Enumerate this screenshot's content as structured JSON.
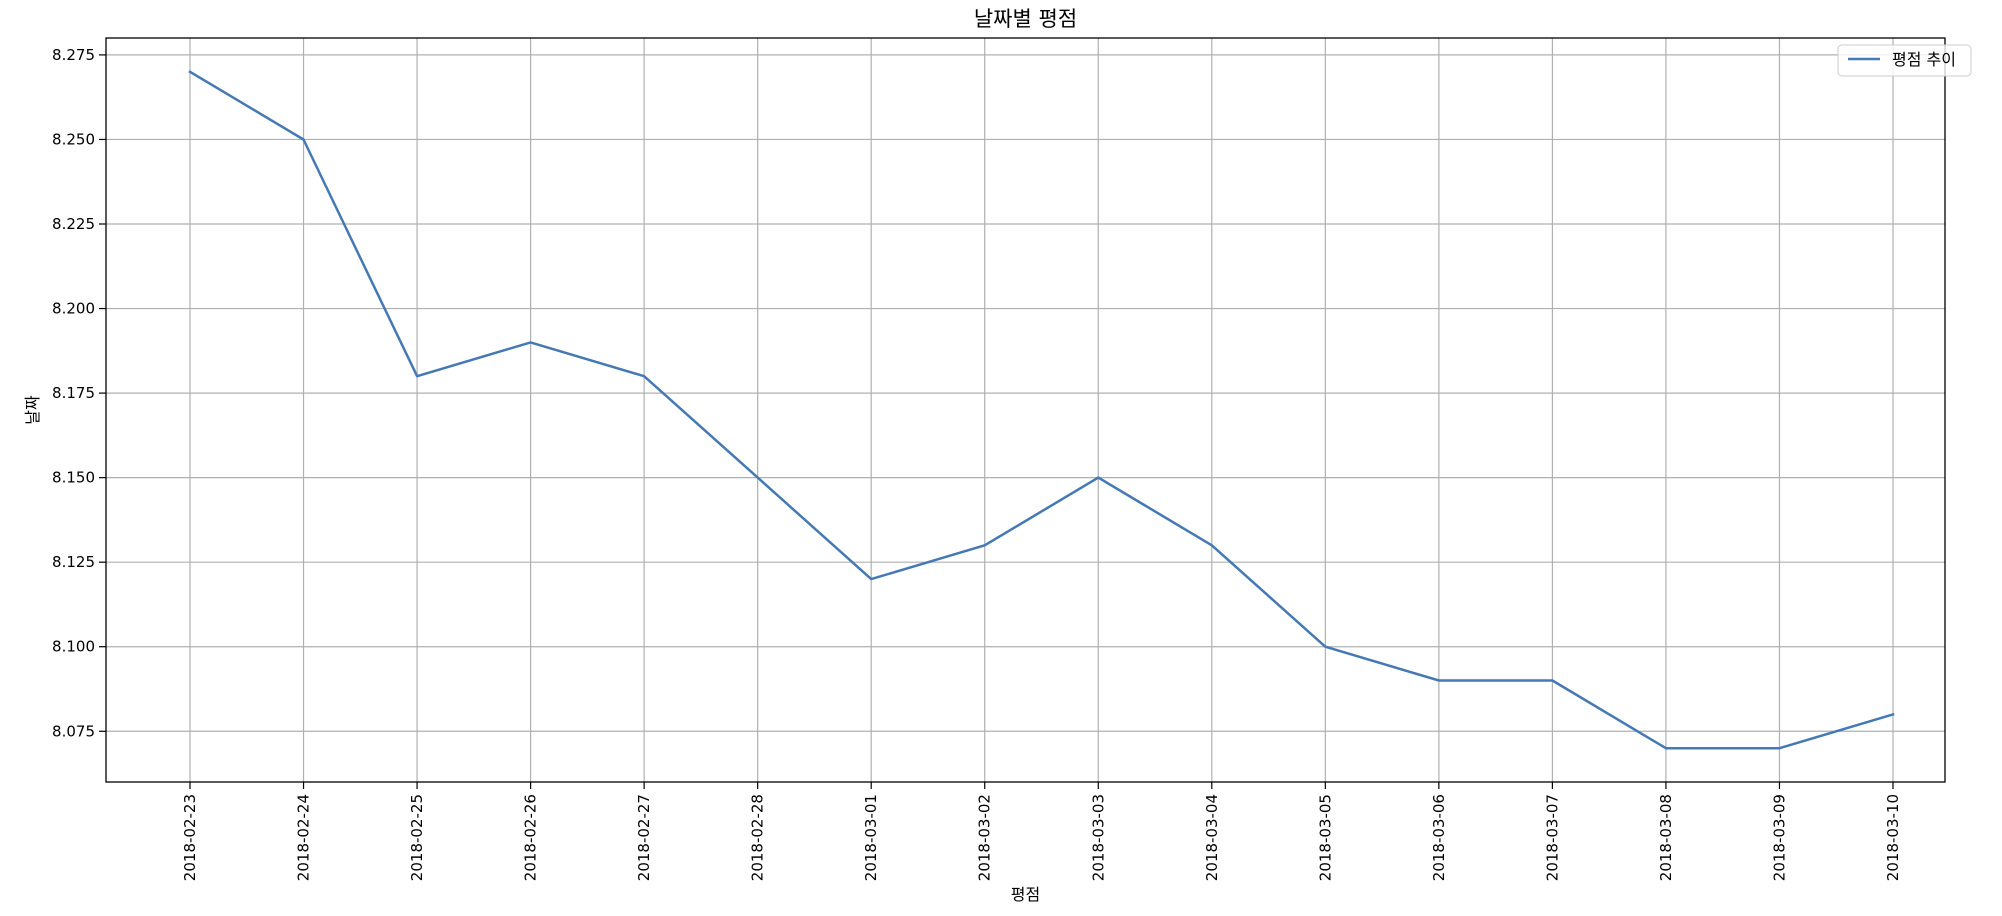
{
  "chart_data": {
    "type": "line",
    "title": "날짜별 평점",
    "xlabel": "평점",
    "ylabel": "날짜",
    "x": [
      "2018-02-23",
      "2018-02-24",
      "2018-02-25",
      "2018-02-26",
      "2018-02-27",
      "2018-02-28",
      "2018-03-01",
      "2018-03-02",
      "2018-03-03",
      "2018-03-04",
      "2018-03-05",
      "2018-03-06",
      "2018-03-07",
      "2018-03-08",
      "2018-03-09",
      "2018-03-10"
    ],
    "series": [
      {
        "name": "평점 추이",
        "color": "#4479b4",
        "values": [
          8.27,
          8.25,
          8.18,
          8.19,
          8.18,
          8.15,
          8.12,
          8.13,
          8.15,
          8.13,
          8.1,
          8.09,
          8.09,
          8.07,
          8.07,
          8.08
        ]
      }
    ],
    "ylim": [
      8.06,
      8.28
    ],
    "yticks": [
      "8.075",
      "8.100",
      "8.125",
      "8.150",
      "8.175",
      "8.200",
      "8.225",
      "8.250",
      "8.275"
    ],
    "grid": true,
    "legend_position": "top-right",
    "grid_color": "#b0b0b0"
  }
}
